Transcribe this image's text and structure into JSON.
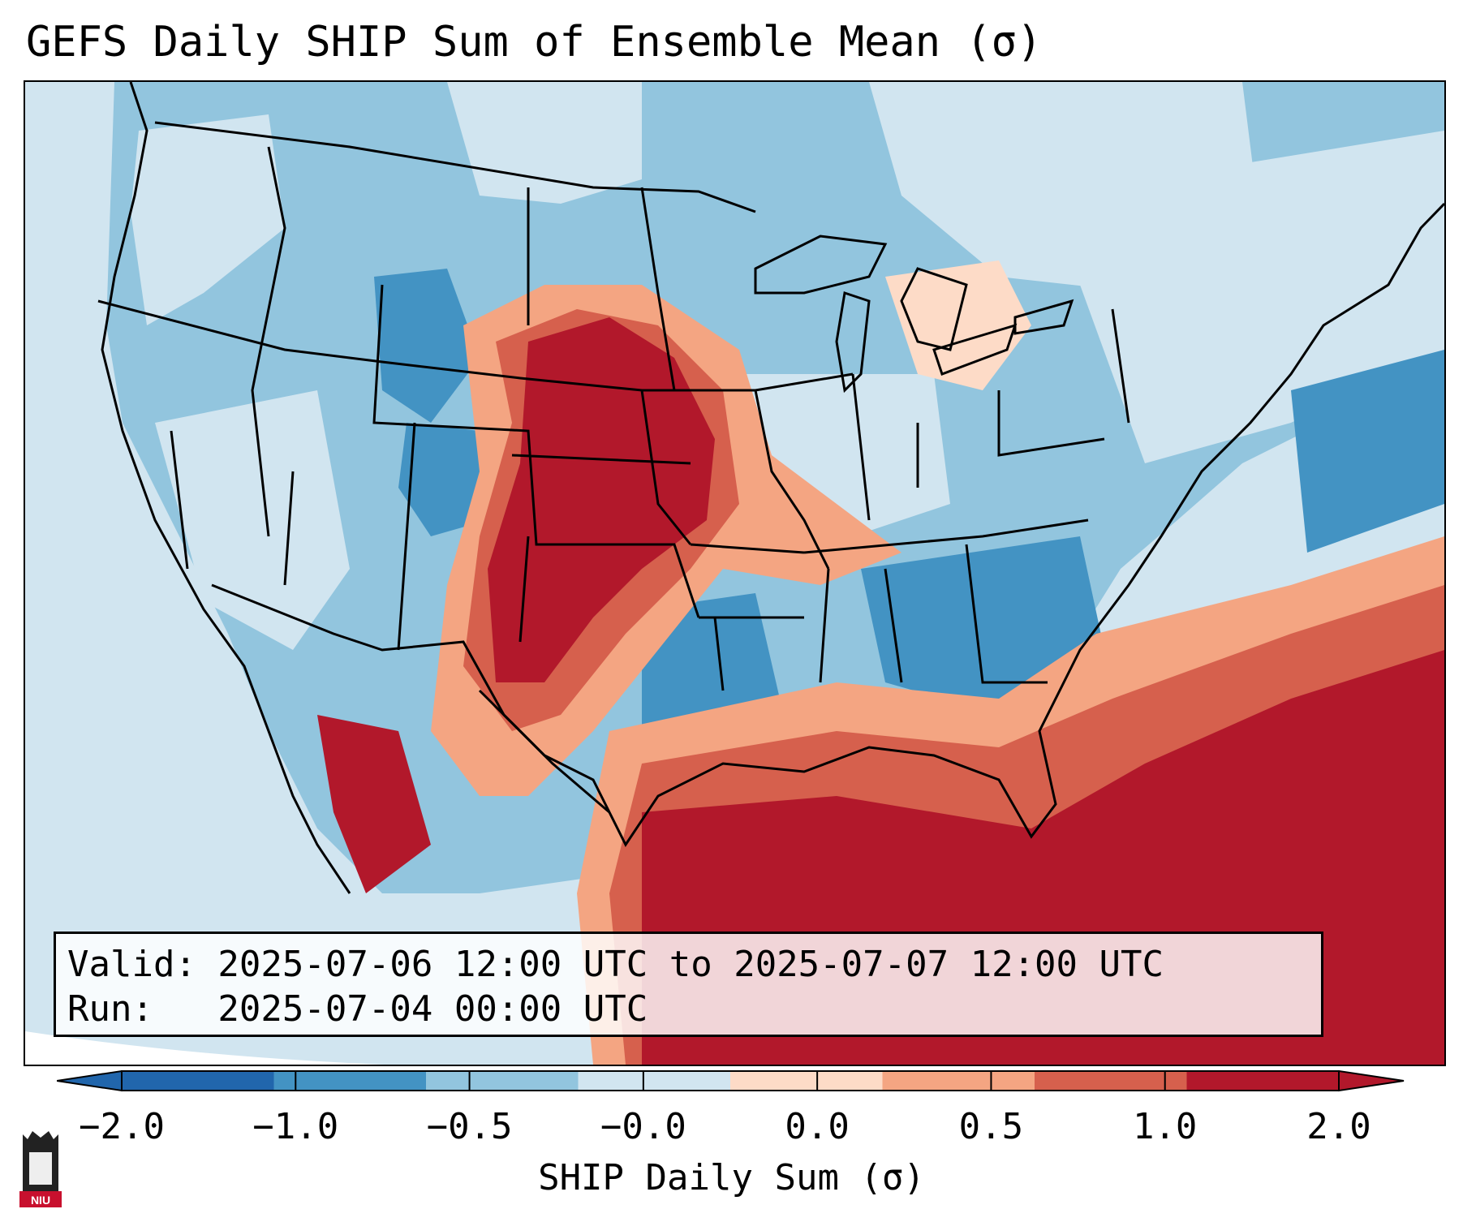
{
  "title": "GEFS Daily SHIP Sum of Ensemble Mean (σ)",
  "info": {
    "valid_line": "Valid: 2025-07-06 12:00 UTC to 2025-07-07 12:00 UTC",
    "run_line": "Run:   2025-07-04 00:00 UTC"
  },
  "colorbar": {
    "label": "SHIP Daily Sum (σ)",
    "ticks": [
      "−2.0",
      "−1.0",
      "−0.5",
      "−0.0",
      "0.0",
      "0.5",
      "1.0",
      "2.0"
    ],
    "colors": [
      "#2166ac",
      "#4393c3",
      "#92c5de",
      "#d1e5f0",
      "#fddbc7",
      "#f4a582",
      "#d6604d",
      "#b2182b"
    ],
    "extend": "both"
  },
  "logo": {
    "text": "NIU"
  },
  "map": {
    "projection": "lambert-conformal",
    "region": "CONUS"
  }
}
